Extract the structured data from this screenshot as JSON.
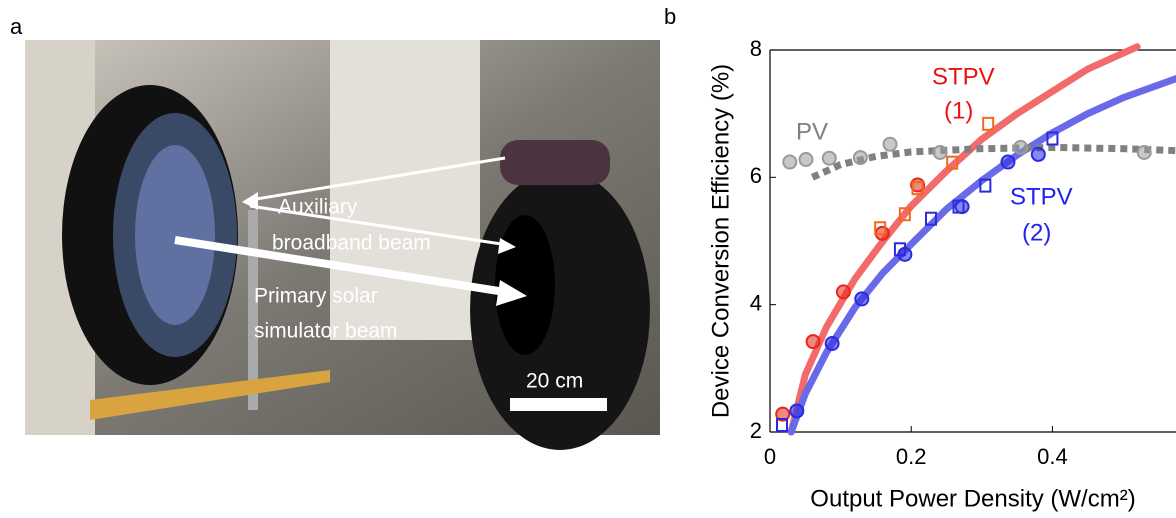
{
  "panel_labels": [
    "a",
    "b"
  ],
  "photo": {
    "labels": [
      "Auxiliary",
      "broadband beam",
      "Primary solar",
      "simulator beam",
      "20 cm"
    ]
  },
  "chart_data": {
    "type": "scatter",
    "xlabel": "Output Power Density (W/cm²)",
    "ylabel": "Device Conversion Efficiency (%)",
    "xlim": [
      0,
      0.575
    ],
    "ylim": [
      2,
      8
    ],
    "xticks": [
      0,
      0.2,
      0.4
    ],
    "yticks": [
      2,
      4,
      6,
      8
    ],
    "curves": [
      {
        "color": "#f26a6a",
        "dash": false,
        "x": [
          0.03,
          0.05,
          0.08,
          0.12,
          0.16,
          0.2,
          0.25,
          0.3,
          0.35,
          0.4,
          0.45,
          0.52
        ],
        "values": [
          2.0,
          2.9,
          3.65,
          4.4,
          5.0,
          5.55,
          6.1,
          6.6,
          7.0,
          7.35,
          7.7,
          8.05
        ]
      },
      {
        "color": "#6a6ae8",
        "dash": false,
        "x": [
          0.03,
          0.05,
          0.08,
          0.12,
          0.16,
          0.2,
          0.25,
          0.3,
          0.35,
          0.4,
          0.45,
          0.5,
          0.575
        ],
        "values": [
          2.0,
          2.6,
          3.25,
          3.95,
          4.5,
          4.95,
          5.5,
          5.95,
          6.35,
          6.7,
          7.0,
          7.25,
          7.55
        ]
      },
      {
        "color": "#808080",
        "dash": true,
        "x": [
          0.06,
          0.1,
          0.15,
          0.2,
          0.3,
          0.4,
          0.5,
          0.575
        ],
        "values": [
          6.0,
          6.2,
          6.33,
          6.4,
          6.45,
          6.47,
          6.45,
          6.42
        ]
      }
    ],
    "series": [
      {
        "marker": "circle",
        "color": "#e8261a",
        "x": [
          0.018,
          0.061,
          0.104,
          0.159,
          0.209
        ],
        "values": [
          2.28,
          3.42,
          4.2,
          5.12,
          5.88
        ]
      },
      {
        "marker": "square",
        "color": "#f06a1a",
        "x": [
          0.156,
          0.191,
          0.209,
          0.258,
          0.309
        ],
        "values": [
          5.2,
          5.42,
          5.83,
          6.23,
          6.84
        ]
      },
      {
        "marker": "circle",
        "color": "#2a2ae0",
        "x": [
          0.038,
          0.088,
          0.13,
          0.191,
          0.272,
          0.337,
          0.38
        ],
        "values": [
          2.33,
          3.39,
          4.09,
          4.79,
          5.54,
          6.24,
          6.36
        ]
      },
      {
        "marker": "square",
        "color": "#2a2ae0",
        "x": [
          0.017,
          0.184,
          0.228,
          0.267,
          0.305,
          0.4
        ],
        "values": [
          2.11,
          4.87,
          5.35,
          5.54,
          5.87,
          6.61
        ]
      },
      {
        "marker": "circle",
        "color": "#9a9a9a",
        "x": [
          0.028,
          0.051,
          0.084,
          0.128,
          0.17,
          0.241,
          0.355,
          0.53
        ],
        "values": [
          6.24,
          6.28,
          6.3,
          6.31,
          6.52,
          6.39,
          6.47,
          6.39
        ]
      }
    ],
    "annotations": [
      {
        "text": "STPV",
        "color": "#ee1111"
      },
      {
        "text": "(1)",
        "color": "#ee1111"
      },
      {
        "text": "PV",
        "color": "#808080"
      },
      {
        "text": "STPV",
        "color": "#2222ee"
      },
      {
        "text": "(2)",
        "color": "#2222ee"
      }
    ]
  }
}
